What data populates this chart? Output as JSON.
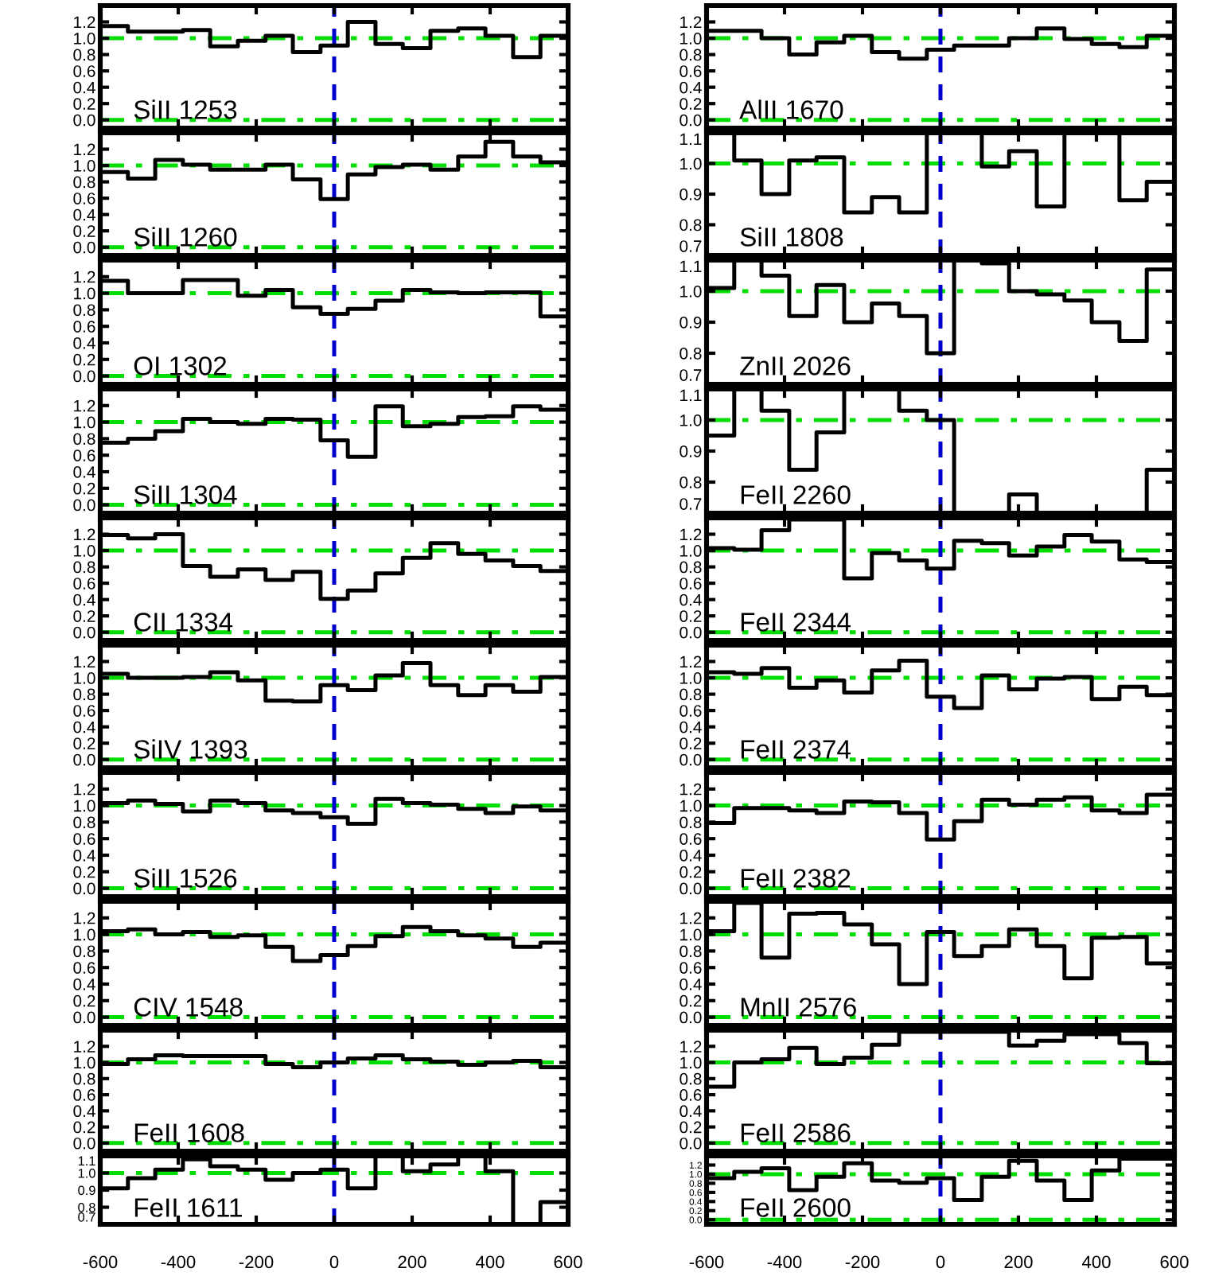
{
  "chart_data": [
    {
      "type": "histogram",
      "annotations": [
        "SiII 1253"
      ],
      "color": "#000000",
      "bins": [
        -600,
        -529,
        -459,
        -388,
        -318,
        -247,
        -176,
        -106,
        -35,
        35,
        106,
        176,
        247,
        318,
        388,
        459,
        529,
        600
      ],
      "values": [
        1.15,
        1.08,
        1.08,
        1.1,
        0.9,
        0.97,
        1.03,
        0.83,
        0.91,
        1.2,
        0.93,
        0.88,
        1.09,
        1.12,
        1.03,
        0.77,
        1.03
      ],
      "xlim": [
        -600,
        600
      ],
      "xticks": [
        -600,
        -400,
        -200,
        0,
        200,
        400,
        600
      ],
      "ylim": [
        -0.1,
        1.4
      ],
      "yticks": [
        {
          "value": 0,
          "label": "0.0"
        },
        {
          "value": 0.2,
          "label": "0.2"
        },
        {
          "value": 0.4,
          "label": "0.4"
        },
        {
          "value": 0.6,
          "label": "0.6"
        },
        {
          "value": 0.8,
          "label": "0.8"
        },
        {
          "value": 1,
          "label": "1.0"
        },
        {
          "value": 1.2,
          "label": "1.2"
        }
      ],
      "tick_labels": "y",
      "ref_lines": [
        {
          "axis": "y",
          "value": 1,
          "color": "#00dd00",
          "line_style": "dashdot"
        },
        {
          "axis": "y",
          "value": 0,
          "color": "#00dd00",
          "line_style": "dashdot"
        },
        {
          "axis": "x",
          "value": 0,
          "color": "#0000cc",
          "line_style": "dashed"
        }
      ]
    },
    {
      "type": "histogram",
      "annotations": [
        "AlII 1670"
      ],
      "color": "#000000",
      "bins": [
        -600,
        -529,
        -459,
        -388,
        -318,
        -247,
        -176,
        -106,
        -35,
        35,
        106,
        176,
        247,
        318,
        388,
        459,
        529,
        600
      ],
      "values": [
        1.09,
        1.09,
        1.0,
        0.8,
        0.95,
        1.03,
        0.83,
        0.75,
        0.86,
        0.91,
        0.91,
        1.0,
        1.12,
        0.99,
        0.93,
        0.89,
        1.03
      ],
      "xlim": [
        -600,
        600
      ],
      "xticks": [
        -600,
        -400,
        -200,
        0,
        200,
        400,
        600
      ],
      "ylim": [
        -0.1,
        1.4
      ],
      "yticks": [
        {
          "value": 0,
          "label": "0.0"
        },
        {
          "value": 0.2,
          "label": "0.2"
        },
        {
          "value": 0.4,
          "label": "0.4"
        },
        {
          "value": 0.6,
          "label": "0.6"
        },
        {
          "value": 0.8,
          "label": "0.8"
        },
        {
          "value": 1,
          "label": "1.0"
        },
        {
          "value": 1.2,
          "label": "1.2"
        }
      ],
      "tick_labels": "y",
      "ref_lines": [
        {
          "axis": "y",
          "value": 1,
          "color": "#00dd00",
          "line_style": "dashdot"
        },
        {
          "axis": "y",
          "value": 0,
          "color": "#00dd00",
          "line_style": "dashdot"
        },
        {
          "axis": "x",
          "value": 0,
          "color": "#0000cc",
          "line_style": "dashed"
        }
      ]
    },
    {
      "type": "histogram",
      "annotations": [
        "SiII 1260"
      ],
      "color": "#000000",
      "bins": [
        -600,
        -529,
        -459,
        -388,
        -318,
        -247,
        -176,
        -106,
        -35,
        35,
        106,
        176,
        247,
        318,
        388,
        459,
        529,
        600
      ],
      "values": [
        0.92,
        0.84,
        1.07,
        1.01,
        0.95,
        0.95,
        1.01,
        0.83,
        0.59,
        0.89,
        0.98,
        1.01,
        0.95,
        1.11,
        1.29,
        1.11,
        1.04
      ],
      "xlim": [
        -600,
        600
      ],
      "xticks": [
        -600,
        -400,
        -200,
        0,
        200,
        400,
        600
      ],
      "ylim": [
        -0.1,
        1.4
      ],
      "yticks": [
        {
          "value": 0,
          "label": "0.0"
        },
        {
          "value": 0.2,
          "label": "0.2"
        },
        {
          "value": 0.4,
          "label": "0.4"
        },
        {
          "value": 0.6,
          "label": "0.6"
        },
        {
          "value": 0.8,
          "label": "0.8"
        },
        {
          "value": 1,
          "label": "1.0"
        },
        {
          "value": 1.2,
          "label": "1.2"
        }
      ],
      "tick_labels": "y",
      "ref_lines": [
        {
          "axis": "y",
          "value": 1,
          "color": "#00dd00",
          "line_style": "dashdot"
        },
        {
          "axis": "y",
          "value": 0,
          "color": "#00dd00",
          "line_style": "dashdot"
        },
        {
          "axis": "x",
          "value": 0,
          "color": "#0000cc",
          "line_style": "dashed"
        }
      ]
    },
    {
      "type": "histogram",
      "annotations": [
        "SiII 1808"
      ],
      "color": "#000000",
      "bins": [
        -600,
        -529,
        -459,
        -388,
        -318,
        -247,
        -176,
        -106,
        -35,
        35,
        106,
        176,
        247,
        318,
        388,
        459,
        529,
        600
      ],
      "values": [
        1.1,
        1.01,
        0.9,
        1.01,
        1.02,
        0.84,
        0.89,
        0.84,
        1.1,
        1.1,
        0.99,
        1.04,
        0.86,
        1.1,
        1.1,
        0.88,
        0.94
      ],
      "xlim": [
        -600,
        600
      ],
      "xticks": [
        -600,
        -400,
        -200,
        0,
        200,
        400,
        600
      ],
      "ylim": [
        0.7,
        1.1
      ],
      "yticks": [
        {
          "value": 0.7,
          "label": "0.7"
        },
        {
          "value": 0.8,
          "label": "0.8"
        },
        {
          "value": 0.9,
          "label": "0.9"
        },
        {
          "value": 1,
          "label": "1.0"
        },
        {
          "value": 1.1,
          "label": "1.1"
        }
      ],
      "tick_labels": "y",
      "ref_lines": [
        {
          "axis": "y",
          "value": 1,
          "color": "#00dd00",
          "line_style": "dashdot"
        },
        {
          "axis": "x",
          "value": 0,
          "color": "#0000cc",
          "line_style": "dashed"
        }
      ]
    },
    {
      "type": "histogram",
      "annotations": [
        "OI 1302"
      ],
      "color": "#000000",
      "bins": [
        -600,
        -529,
        -459,
        -388,
        -318,
        -247,
        -176,
        -106,
        -35,
        35,
        106,
        176,
        247,
        318,
        388,
        459,
        529,
        600
      ],
      "values": [
        1.15,
        1.0,
        1.0,
        1.16,
        1.16,
        0.97,
        1.04,
        0.83,
        0.75,
        0.81,
        0.91,
        1.04,
        1.01,
        1.0,
        1.01,
        1.01,
        0.72
      ],
      "xlim": [
        -600,
        600
      ],
      "xticks": [
        -600,
        -400,
        -200,
        0,
        200,
        400,
        600
      ],
      "ylim": [
        -0.1,
        1.4
      ],
      "yticks": [
        {
          "value": 0,
          "label": "0.0"
        },
        {
          "value": 0.2,
          "label": "0.2"
        },
        {
          "value": 0.4,
          "label": "0.4"
        },
        {
          "value": 0.6,
          "label": "0.6"
        },
        {
          "value": 0.8,
          "label": "0.8"
        },
        {
          "value": 1,
          "label": "1.0"
        },
        {
          "value": 1.2,
          "label": "1.2"
        }
      ],
      "tick_labels": "y",
      "ref_lines": [
        {
          "axis": "y",
          "value": 1,
          "color": "#00dd00",
          "line_style": "dashdot"
        },
        {
          "axis": "y",
          "value": 0,
          "color": "#00dd00",
          "line_style": "dashdot"
        },
        {
          "axis": "x",
          "value": 0,
          "color": "#0000cc",
          "line_style": "dashed"
        }
      ]
    },
    {
      "type": "histogram",
      "annotations": [
        "ZnII 2026"
      ],
      "color": "#000000",
      "bins": [
        -600,
        -529,
        -459,
        -388,
        -318,
        -247,
        -176,
        -106,
        -35,
        35,
        106,
        176,
        247,
        318,
        388,
        459,
        529,
        600
      ],
      "values": [
        1.01,
        1.1,
        1.05,
        0.92,
        1.02,
        0.9,
        0.96,
        0.92,
        0.8,
        1.1,
        1.09,
        1.0,
        0.99,
        0.97,
        0.9,
        0.84,
        1.07
      ],
      "xlim": [
        -600,
        600
      ],
      "xticks": [
        -600,
        -400,
        -200,
        0,
        200,
        400,
        600
      ],
      "ylim": [
        0.7,
        1.1
      ],
      "yticks": [
        {
          "value": 0.7,
          "label": "0.7"
        },
        {
          "value": 0.8,
          "label": "0.8"
        },
        {
          "value": 0.9,
          "label": "0.9"
        },
        {
          "value": 1,
          "label": "1.0"
        },
        {
          "value": 1.1,
          "label": "1.1"
        }
      ],
      "tick_labels": "y",
      "ref_lines": [
        {
          "axis": "y",
          "value": 1,
          "color": "#00dd00",
          "line_style": "dashdot"
        },
        {
          "axis": "x",
          "value": 0,
          "color": "#0000cc",
          "line_style": "dashed"
        }
      ]
    },
    {
      "type": "histogram",
      "annotations": [
        "SiII 1304"
      ],
      "color": "#000000",
      "bins": [
        -600,
        -529,
        -459,
        -388,
        -318,
        -247,
        -176,
        -106,
        -35,
        35,
        106,
        176,
        247,
        318,
        388,
        459,
        529,
        600
      ],
      "values": [
        0.75,
        0.8,
        0.89,
        1.04,
        1.0,
        0.98,
        1.04,
        1.03,
        0.78,
        0.58,
        1.19,
        0.95,
        0.98,
        1.06,
        1.07,
        1.19,
        1.15
      ],
      "xlim": [
        -600,
        600
      ],
      "xticks": [
        -600,
        -400,
        -200,
        0,
        200,
        400,
        600
      ],
      "ylim": [
        -0.1,
        1.4
      ],
      "yticks": [
        {
          "value": 0,
          "label": "0.0"
        },
        {
          "value": 0.2,
          "label": "0.2"
        },
        {
          "value": 0.4,
          "label": "0.4"
        },
        {
          "value": 0.6,
          "label": "0.6"
        },
        {
          "value": 0.8,
          "label": "0.8"
        },
        {
          "value": 1,
          "label": "1.0"
        },
        {
          "value": 1.2,
          "label": "1.2"
        }
      ],
      "tick_labels": "y",
      "ref_lines": [
        {
          "axis": "y",
          "value": 1,
          "color": "#00dd00",
          "line_style": "dashdot"
        },
        {
          "axis": "y",
          "value": 0,
          "color": "#00dd00",
          "line_style": "dashdot"
        },
        {
          "axis": "x",
          "value": 0,
          "color": "#0000cc",
          "line_style": "dashed"
        }
      ]
    },
    {
      "type": "histogram",
      "annotations": [
        "FeII 2260"
      ],
      "color": "#000000",
      "bins": [
        -600,
        -529,
        -459,
        -388,
        -318,
        -247,
        -176,
        -106,
        -35,
        35,
        106,
        176,
        247,
        318,
        388,
        459,
        529,
        600
      ],
      "values": [
        0.95,
        1.1,
        1.03,
        0.84,
        0.96,
        1.1,
        1.1,
        1.03,
        1.0,
        0.7,
        0.7,
        0.76,
        0.7,
        0.7,
        0.7,
        0.7,
        0.84
      ],
      "xlim": [
        -600,
        600
      ],
      "xticks": [
        -600,
        -400,
        -200,
        0,
        200,
        400,
        600
      ],
      "ylim": [
        0.7,
        1.1
      ],
      "yticks": [
        {
          "value": 0.7,
          "label": "0.7"
        },
        {
          "value": 0.8,
          "label": "0.8"
        },
        {
          "value": 0.9,
          "label": "0.9"
        },
        {
          "value": 1,
          "label": "1.0"
        },
        {
          "value": 1.1,
          "label": "1.1"
        }
      ],
      "tick_labels": "y",
      "ref_lines": [
        {
          "axis": "y",
          "value": 1,
          "color": "#00dd00",
          "line_style": "dashdot"
        },
        {
          "axis": "x",
          "value": 0,
          "color": "#0000cc",
          "line_style": "dashed"
        }
      ]
    },
    {
      "type": "histogram",
      "annotations": [
        "CII 1334"
      ],
      "color": "#000000",
      "bins": [
        -600,
        -529,
        -459,
        -388,
        -318,
        -247,
        -176,
        -106,
        -35,
        35,
        106,
        176,
        247,
        318,
        388,
        459,
        529,
        600
      ],
      "values": [
        1.19,
        1.15,
        1.2,
        0.81,
        0.68,
        0.77,
        0.64,
        0.74,
        0.41,
        0.51,
        0.72,
        0.91,
        1.09,
        0.96,
        0.88,
        0.81,
        0.75
      ],
      "xlim": [
        -600,
        600
      ],
      "xticks": [
        -600,
        -400,
        -200,
        0,
        200,
        400,
        600
      ],
      "ylim": [
        -0.1,
        1.4
      ],
      "yticks": [
        {
          "value": 0,
          "label": "0.0"
        },
        {
          "value": 0.2,
          "label": "0.2"
        },
        {
          "value": 0.4,
          "label": "0.4"
        },
        {
          "value": 0.6,
          "label": "0.6"
        },
        {
          "value": 0.8,
          "label": "0.8"
        },
        {
          "value": 1,
          "label": "1.0"
        },
        {
          "value": 1.2,
          "label": "1.2"
        }
      ],
      "tick_labels": "y",
      "ref_lines": [
        {
          "axis": "y",
          "value": 1,
          "color": "#00dd00",
          "line_style": "dashdot"
        },
        {
          "axis": "y",
          "value": 0,
          "color": "#00dd00",
          "line_style": "dashdot"
        },
        {
          "axis": "x",
          "value": 0,
          "color": "#0000cc",
          "line_style": "dashed"
        }
      ]
    },
    {
      "type": "histogram",
      "annotations": [
        "FeII 2344"
      ],
      "color": "#000000",
      "bins": [
        -600,
        -529,
        -459,
        -388,
        -318,
        -247,
        -176,
        -106,
        -35,
        35,
        106,
        176,
        247,
        318,
        388,
        459,
        529,
        600
      ],
      "values": [
        1.03,
        1.01,
        1.25,
        1.38,
        1.38,
        0.66,
        0.97,
        0.88,
        0.78,
        1.12,
        1.09,
        0.94,
        1.05,
        1.19,
        1.11,
        0.89,
        0.86
      ],
      "xlim": [
        -600,
        600
      ],
      "xticks": [
        -600,
        -400,
        -200,
        0,
        200,
        400,
        600
      ],
      "ylim": [
        -0.1,
        1.4
      ],
      "yticks": [
        {
          "value": 0,
          "label": "0.0"
        },
        {
          "value": 0.2,
          "label": "0.2"
        },
        {
          "value": 0.4,
          "label": "0.4"
        },
        {
          "value": 0.6,
          "label": "0.6"
        },
        {
          "value": 0.8,
          "label": "0.8"
        },
        {
          "value": 1,
          "label": "1.0"
        },
        {
          "value": 1.2,
          "label": "1.2"
        }
      ],
      "tick_labels": "y",
      "ref_lines": [
        {
          "axis": "y",
          "value": 1,
          "color": "#00dd00",
          "line_style": "dashdot"
        },
        {
          "axis": "y",
          "value": 0,
          "color": "#00dd00",
          "line_style": "dashdot"
        },
        {
          "axis": "x",
          "value": 0,
          "color": "#0000cc",
          "line_style": "dashed"
        }
      ]
    },
    {
      "type": "histogram",
      "annotations": [
        "SiIV 1393"
      ],
      "color": "#000000",
      "bins": [
        -600,
        -529,
        -459,
        -388,
        -318,
        -247,
        -176,
        -106,
        -35,
        35,
        106,
        176,
        247,
        318,
        388,
        459,
        529,
        600
      ],
      "values": [
        1.05,
        1.0,
        1.0,
        1.01,
        1.07,
        0.97,
        0.72,
        0.71,
        0.91,
        0.85,
        1.03,
        1.18,
        0.91,
        0.79,
        0.91,
        0.83,
        1.01
      ],
      "xlim": [
        -600,
        600
      ],
      "xticks": [
        -600,
        -400,
        -200,
        0,
        200,
        400,
        600
      ],
      "ylim": [
        -0.1,
        1.4
      ],
      "yticks": [
        {
          "value": 0,
          "label": "0.0"
        },
        {
          "value": 0.2,
          "label": "0.2"
        },
        {
          "value": 0.4,
          "label": "0.4"
        },
        {
          "value": 0.6,
          "label": "0.6"
        },
        {
          "value": 0.8,
          "label": "0.8"
        },
        {
          "value": 1,
          "label": "1.0"
        },
        {
          "value": 1.2,
          "label": "1.2"
        }
      ],
      "tick_labels": "y",
      "ref_lines": [
        {
          "axis": "y",
          "value": 1,
          "color": "#00dd00",
          "line_style": "dashdot"
        },
        {
          "axis": "y",
          "value": 0,
          "color": "#00dd00",
          "line_style": "dashdot"
        },
        {
          "axis": "x",
          "value": 0,
          "color": "#0000cc",
          "line_style": "dashed"
        }
      ]
    },
    {
      "type": "histogram",
      "annotations": [
        "FeII 2374"
      ],
      "color": "#000000",
      "bins": [
        -600,
        -529,
        -459,
        -388,
        -318,
        -247,
        -176,
        -106,
        -35,
        35,
        106,
        176,
        247,
        318,
        388,
        459,
        529,
        600
      ],
      "values": [
        1.07,
        1.05,
        1.12,
        0.88,
        0.97,
        0.82,
        1.09,
        1.21,
        0.77,
        0.63,
        1.03,
        0.86,
        0.99,
        1.01,
        0.74,
        0.89,
        0.79
      ],
      "xlim": [
        -600,
        600
      ],
      "xticks": [
        -600,
        -400,
        -200,
        0,
        200,
        400,
        600
      ],
      "ylim": [
        -0.1,
        1.4
      ],
      "yticks": [
        {
          "value": 0,
          "label": "0.0"
        },
        {
          "value": 0.2,
          "label": "0.2"
        },
        {
          "value": 0.4,
          "label": "0.4"
        },
        {
          "value": 0.6,
          "label": "0.6"
        },
        {
          "value": 0.8,
          "label": "0.8"
        },
        {
          "value": 1,
          "label": "1.0"
        },
        {
          "value": 1.2,
          "label": "1.2"
        }
      ],
      "tick_labels": "y",
      "ref_lines": [
        {
          "axis": "y",
          "value": 1,
          "color": "#00dd00",
          "line_style": "dashdot"
        },
        {
          "axis": "y",
          "value": 0,
          "color": "#00dd00",
          "line_style": "dashdot"
        },
        {
          "axis": "x",
          "value": 0,
          "color": "#0000cc",
          "line_style": "dashed"
        }
      ]
    },
    {
      "type": "histogram",
      "annotations": [
        "SiII 1526"
      ],
      "color": "#000000",
      "bins": [
        -600,
        -529,
        -459,
        -388,
        -318,
        -247,
        -176,
        -106,
        -35,
        35,
        106,
        176,
        247,
        318,
        388,
        459,
        529,
        600
      ],
      "values": [
        1.03,
        1.06,
        1.02,
        0.93,
        1.06,
        1.03,
        0.94,
        0.91,
        0.86,
        0.78,
        1.08,
        1.03,
        1.01,
        0.96,
        0.91,
        0.99,
        0.94
      ],
      "xlim": [
        -600,
        600
      ],
      "xticks": [
        -600,
        -400,
        -200,
        0,
        200,
        400,
        600
      ],
      "ylim": [
        -0.1,
        1.4
      ],
      "yticks": [
        {
          "value": 0,
          "label": "0.0"
        },
        {
          "value": 0.2,
          "label": "0.2"
        },
        {
          "value": 0.4,
          "label": "0.4"
        },
        {
          "value": 0.6,
          "label": "0.6"
        },
        {
          "value": 0.8,
          "label": "0.8"
        },
        {
          "value": 1,
          "label": "1.0"
        },
        {
          "value": 1.2,
          "label": "1.2"
        }
      ],
      "tick_labels": "y",
      "ref_lines": [
        {
          "axis": "y",
          "value": 1,
          "color": "#00dd00",
          "line_style": "dashdot"
        },
        {
          "axis": "y",
          "value": 0,
          "color": "#00dd00",
          "line_style": "dashdot"
        },
        {
          "axis": "x",
          "value": 0,
          "color": "#0000cc",
          "line_style": "dashed"
        }
      ]
    },
    {
      "type": "histogram",
      "annotations": [
        "FeII 2382"
      ],
      "color": "#000000",
      "bins": [
        -600,
        -529,
        -459,
        -388,
        -318,
        -247,
        -176,
        -106,
        -35,
        35,
        106,
        176,
        247,
        318,
        388,
        459,
        529,
        600
      ],
      "values": [
        0.79,
        0.97,
        0.97,
        0.94,
        0.91,
        1.05,
        1.04,
        0.91,
        0.59,
        0.81,
        1.07,
        1.01,
        1.07,
        1.1,
        0.94,
        0.91,
        1.13
      ],
      "xlim": [
        -600,
        600
      ],
      "xticks": [
        -600,
        -400,
        -200,
        0,
        200,
        400,
        600
      ],
      "ylim": [
        -0.1,
        1.4
      ],
      "yticks": [
        {
          "value": 0,
          "label": "0.0"
        },
        {
          "value": 0.2,
          "label": "0.2"
        },
        {
          "value": 0.4,
          "label": "0.4"
        },
        {
          "value": 0.6,
          "label": "0.6"
        },
        {
          "value": 0.8,
          "label": "0.8"
        },
        {
          "value": 1,
          "label": "1.0"
        },
        {
          "value": 1.2,
          "label": "1.2"
        }
      ],
      "tick_labels": "y",
      "ref_lines": [
        {
          "axis": "y",
          "value": 1,
          "color": "#00dd00",
          "line_style": "dashdot"
        },
        {
          "axis": "y",
          "value": 0,
          "color": "#00dd00",
          "line_style": "dashdot"
        },
        {
          "axis": "x",
          "value": 0,
          "color": "#0000cc",
          "line_style": "dashed"
        }
      ]
    },
    {
      "type": "histogram",
      "annotations": [
        "CIV 1548"
      ],
      "color": "#000000",
      "bins": [
        -600,
        -529,
        -459,
        -388,
        -318,
        -247,
        -176,
        -106,
        -35,
        35,
        106,
        176,
        247,
        318,
        388,
        459,
        529,
        600
      ],
      "values": [
        1.04,
        1.06,
        1.0,
        1.03,
        0.97,
        0.99,
        0.85,
        0.68,
        0.75,
        0.86,
        0.98,
        1.09,
        1.04,
        0.99,
        0.95,
        0.85,
        0.9
      ],
      "xlim": [
        -600,
        600
      ],
      "xticks": [
        -600,
        -400,
        -200,
        0,
        200,
        400,
        600
      ],
      "ylim": [
        -0.1,
        1.4
      ],
      "yticks": [
        {
          "value": 0,
          "label": "0.0"
        },
        {
          "value": 0.2,
          "label": "0.2"
        },
        {
          "value": 0.4,
          "label": "0.4"
        },
        {
          "value": 0.6,
          "label": "0.6"
        },
        {
          "value": 0.8,
          "label": "0.8"
        },
        {
          "value": 1,
          "label": "1.0"
        },
        {
          "value": 1.2,
          "label": "1.2"
        }
      ],
      "tick_labels": "y",
      "ref_lines": [
        {
          "axis": "y",
          "value": 1,
          "color": "#00dd00",
          "line_style": "dashdot"
        },
        {
          "axis": "y",
          "value": 0,
          "color": "#00dd00",
          "line_style": "dashdot"
        },
        {
          "axis": "x",
          "value": 0,
          "color": "#0000cc",
          "line_style": "dashed"
        }
      ]
    },
    {
      "type": "histogram",
      "annotations": [
        "MnII 2576"
      ],
      "color": "#000000",
      "bins": [
        -600,
        -529,
        -459,
        -388,
        -318,
        -247,
        -176,
        -106,
        -35,
        35,
        106,
        176,
        247,
        318,
        388,
        459,
        529,
        600
      ],
      "values": [
        1.04,
        1.38,
        0.72,
        1.25,
        1.26,
        1.12,
        0.88,
        0.4,
        1.03,
        0.74,
        0.86,
        1.06,
        0.86,
        0.47,
        0.96,
        0.97,
        0.65
      ],
      "xlim": [
        -600,
        600
      ],
      "xticks": [
        -600,
        -400,
        -200,
        0,
        200,
        400,
        600
      ],
      "ylim": [
        -0.1,
        1.4
      ],
      "yticks": [
        {
          "value": 0,
          "label": "0.0"
        },
        {
          "value": 0.2,
          "label": "0.2"
        },
        {
          "value": 0.4,
          "label": "0.4"
        },
        {
          "value": 0.6,
          "label": "0.6"
        },
        {
          "value": 0.8,
          "label": "0.8"
        },
        {
          "value": 1,
          "label": "1.0"
        },
        {
          "value": 1.2,
          "label": "1.2"
        }
      ],
      "tick_labels": "y",
      "ref_lines": [
        {
          "axis": "y",
          "value": 1,
          "color": "#00dd00",
          "line_style": "dashdot"
        },
        {
          "axis": "y",
          "value": 0,
          "color": "#00dd00",
          "line_style": "dashdot"
        },
        {
          "axis": "x",
          "value": 0,
          "color": "#0000cc",
          "line_style": "dashed"
        }
      ]
    },
    {
      "type": "histogram",
      "annotations": [
        "FeII 1608"
      ],
      "color": "#000000",
      "bins": [
        -600,
        -529,
        -459,
        -388,
        -318,
        -247,
        -176,
        -106,
        -35,
        35,
        106,
        176,
        247,
        318,
        388,
        459,
        529,
        600
      ],
      "values": [
        0.98,
        1.04,
        1.09,
        1.08,
        1.08,
        1.08,
        0.98,
        0.94,
        1.0,
        1.05,
        1.09,
        1.04,
        1.01,
        0.97,
        1.0,
        1.02,
        0.94
      ],
      "xlim": [
        -600,
        600
      ],
      "xticks": [
        -600,
        -400,
        -200,
        0,
        200,
        400,
        600
      ],
      "ylim": [
        -0.1,
        1.4
      ],
      "yticks": [
        {
          "value": 0,
          "label": "0.0"
        },
        {
          "value": 0.2,
          "label": "0.2"
        },
        {
          "value": 0.4,
          "label": "0.4"
        },
        {
          "value": 0.6,
          "label": "0.6"
        },
        {
          "value": 0.8,
          "label": "0.8"
        },
        {
          "value": 1,
          "label": "1.0"
        },
        {
          "value": 1.2,
          "label": "1.2"
        }
      ],
      "tick_labels": "y",
      "ref_lines": [
        {
          "axis": "y",
          "value": 1,
          "color": "#00dd00",
          "line_style": "dashdot"
        },
        {
          "axis": "y",
          "value": 0,
          "color": "#00dd00",
          "line_style": "dashdot"
        },
        {
          "axis": "x",
          "value": 0,
          "color": "#0000cc",
          "line_style": "dashed"
        }
      ]
    },
    {
      "type": "histogram",
      "annotations": [
        "FeII 2586"
      ],
      "color": "#000000",
      "bins": [
        -600,
        -529,
        -459,
        -388,
        -318,
        -247,
        -176,
        -106,
        -35,
        35,
        106,
        176,
        247,
        318,
        388,
        459,
        529,
        600
      ],
      "values": [
        0.7,
        1.0,
        1.04,
        1.18,
        0.98,
        1.06,
        1.22,
        1.38,
        1.38,
        1.38,
        1.38,
        1.21,
        1.27,
        1.35,
        1.35,
        1.24,
        0.99
      ],
      "xlim": [
        -600,
        600
      ],
      "xticks": [
        -600,
        -400,
        -200,
        0,
        200,
        400,
        600
      ],
      "ylim": [
        -0.1,
        1.4
      ],
      "yticks": [
        {
          "value": 0,
          "label": "0.0"
        },
        {
          "value": 0.2,
          "label": "0.2"
        },
        {
          "value": 0.4,
          "label": "0.4"
        },
        {
          "value": 0.6,
          "label": "0.6"
        },
        {
          "value": 0.8,
          "label": "0.8"
        },
        {
          "value": 1,
          "label": "1.0"
        },
        {
          "value": 1.2,
          "label": "1.2"
        }
      ],
      "tick_labels": "y",
      "ref_lines": [
        {
          "axis": "y",
          "value": 1,
          "color": "#00dd00",
          "line_style": "dashdot"
        },
        {
          "axis": "y",
          "value": 0,
          "color": "#00dd00",
          "line_style": "dashdot"
        },
        {
          "axis": "x",
          "value": 0,
          "color": "#0000cc",
          "line_style": "dashed"
        }
      ]
    },
    {
      "type": "histogram",
      "annotations": [
        "FeII 1611"
      ],
      "color": "#000000",
      "bins": [
        -600,
        -529,
        -459,
        -388,
        -318,
        -247,
        -176,
        -106,
        -35,
        35,
        106,
        176,
        247,
        318,
        388,
        459,
        529,
        600
      ],
      "values": [
        0.91,
        0.97,
        1.02,
        1.08,
        1.04,
        1.02,
        0.96,
        1.0,
        1.02,
        0.91,
        1.1,
        1.01,
        1.05,
        1.1,
        1.01,
        0.7,
        0.83
      ],
      "xlim": [
        -600,
        600
      ],
      "xticks": [
        -600,
        -400,
        -200,
        0,
        200,
        400,
        600
      ],
      "ylim": [
        0.7,
        1.1
      ],
      "yticks": [
        {
          "value": 0.7,
          "label": "0.7"
        },
        {
          "value": 0.8,
          "label": "0.8"
        },
        {
          "value": 0.9,
          "label": "0.9"
        },
        {
          "value": 1,
          "label": "1.0"
        },
        {
          "value": 1.1,
          "label": "1.1"
        }
      ],
      "ref_lines": [
        {
          "axis": "y",
          "value": 1,
          "color": "#00dd00",
          "line_style": "dashdot"
        },
        {
          "axis": "x",
          "value": 0,
          "color": "#0000cc",
          "line_style": "dashed"
        }
      ]
    },
    {
      "type": "histogram",
      "annotations": [
        "FeII 2600"
      ],
      "color": "#000000",
      "bins": [
        -600,
        -529,
        -459,
        -388,
        -318,
        -247,
        -176,
        -106,
        -35,
        35,
        106,
        176,
        247,
        318,
        388,
        459,
        529,
        600
      ],
      "values": [
        0.91,
        1.05,
        1.13,
        0.65,
        0.94,
        1.24,
        0.86,
        0.81,
        0.91,
        0.43,
        0.94,
        1.29,
        0.86,
        0.43,
        1.08,
        1.34,
        1.34
      ],
      "xlim": [
        -600,
        600
      ],
      "xticks": [
        -600,
        -400,
        -200,
        0,
        200,
        400,
        600
      ],
      "ylim": [
        -0.1,
        1.4
      ],
      "yticks": [
        {
          "value": 0,
          "label": "0.0"
        },
        {
          "value": 0.2,
          "label": "0.2"
        },
        {
          "value": 0.4,
          "label": "0.4"
        },
        {
          "value": 0.6,
          "label": "0.6"
        },
        {
          "value": 0.8,
          "label": "0.8"
        },
        {
          "value": 1,
          "label": "1.0"
        },
        {
          "value": 1.2,
          "label": "1.2"
        }
      ],
      "ref_lines": [
        {
          "axis": "y",
          "value": 1,
          "color": "#00dd00",
          "line_style": "dashdot"
        },
        {
          "axis": "y",
          "value": 0,
          "color": "#00dd00",
          "line_style": "dashdot"
        },
        {
          "axis": "x",
          "value": 0,
          "color": "#0000cc",
          "line_style": "dashed"
        }
      ]
    }
  ]
}
